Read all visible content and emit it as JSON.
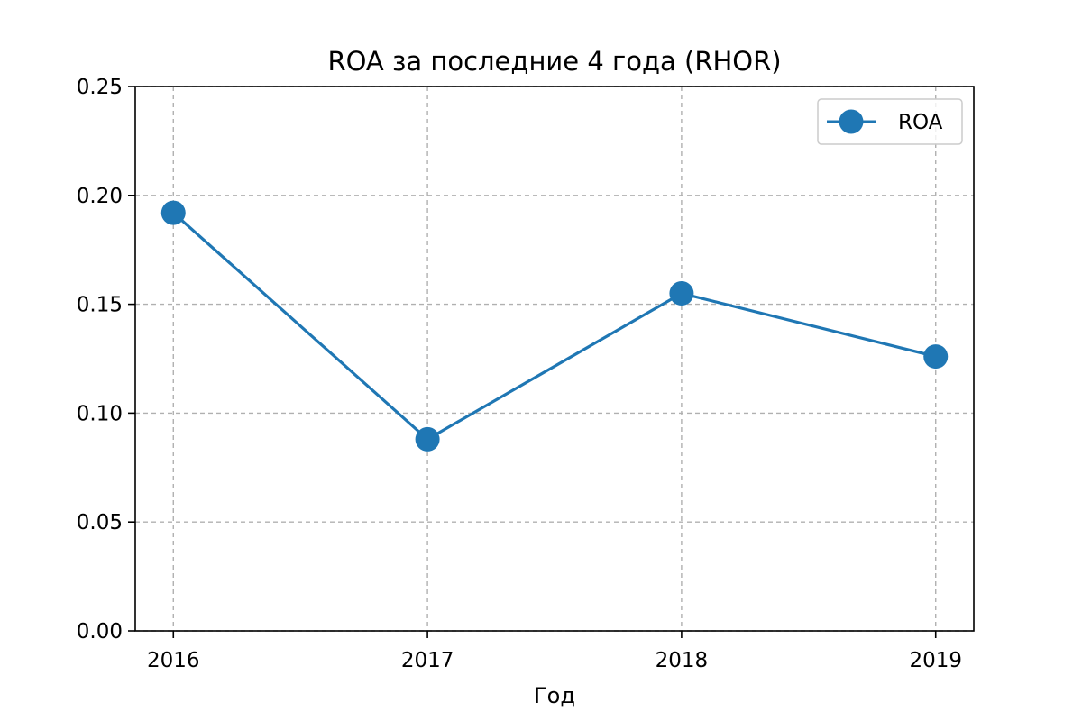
{
  "chart_data": {
    "type": "line",
    "title": "ROA за последние 4 года (RHOR)",
    "xlabel": "Год",
    "ylabel": "",
    "categories": [
      "2016",
      "2017",
      "2018",
      "2019"
    ],
    "series": [
      {
        "name": "ROA",
        "values": [
          0.192,
          0.088,
          0.155,
          0.126
        ],
        "color": "#1f77b4"
      }
    ],
    "ylim": [
      0,
      0.25
    ],
    "yticks": [
      "0.00",
      "0.05",
      "0.10",
      "0.15",
      "0.20",
      "0.25"
    ],
    "grid": true,
    "grid_style": "dashed",
    "legend_position": "top-right",
    "marker": "circle"
  }
}
